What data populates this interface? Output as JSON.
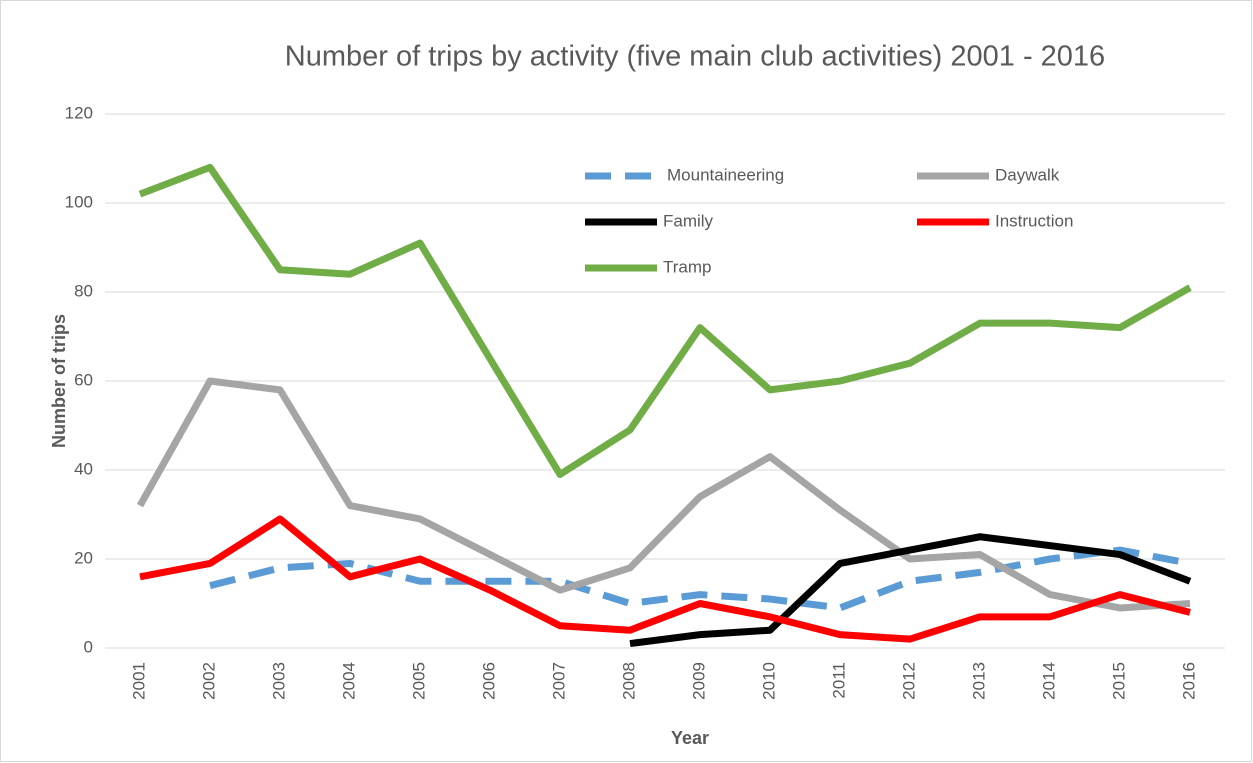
{
  "chart_data": {
    "type": "line",
    "title": "Number of trips by activity (five main club activities) 2001 - 2016",
    "x_label": "Year",
    "y_label": "Number of trips",
    "categories": [
      "2001",
      "2002",
      "2003",
      "2004",
      "2005",
      "2006",
      "2007",
      "2008",
      "2009",
      "2010",
      "2011",
      "2012",
      "2013",
      "2014",
      "2015",
      "2016"
    ],
    "series": [
      {
        "name": "Mountaineering",
        "color": "#5b9bd5",
        "dashed": true,
        "values": [
          null,
          14,
          18,
          19,
          15,
          15,
          15,
          10,
          12,
          11,
          9,
          15,
          17,
          20,
          22,
          19
        ]
      },
      {
        "name": "Daywalk",
        "color": "#a5a5a5",
        "values": [
          32,
          60,
          58,
          32,
          29,
          21,
          13,
          18,
          34,
          43,
          31,
          20,
          21,
          12,
          9,
          10
        ]
      },
      {
        "name": "Family",
        "color": "#000000",
        "values": [
          null,
          null,
          null,
          null,
          null,
          null,
          null,
          1,
          3,
          4,
          19,
          22,
          25,
          23,
          21,
          15
        ]
      },
      {
        "name": "Instruction",
        "color": "#ff0000",
        "values": [
          16,
          19,
          29,
          16,
          20,
          13,
          5,
          4,
          10,
          7,
          3,
          2,
          7,
          7,
          12,
          8
        ]
      },
      {
        "name": "Tramp",
        "color": "#70ad47",
        "values": [
          102,
          108,
          85,
          84,
          91,
          65,
          39,
          49,
          72,
          58,
          60,
          64,
          73,
          73,
          72,
          81
        ]
      }
    ],
    "ylim": [
      0,
      120
    ],
    "yticks": [
      0,
      20,
      40,
      60,
      80,
      100,
      120
    ],
    "grid": true
  }
}
